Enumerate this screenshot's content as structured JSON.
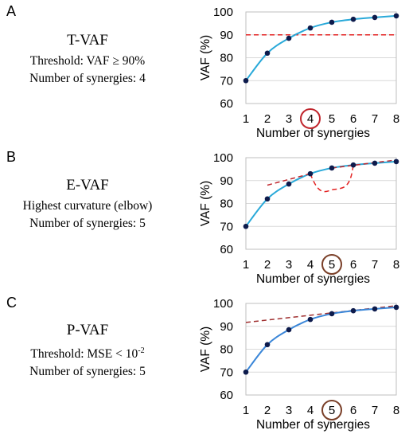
{
  "panels": [
    {
      "letter": "A",
      "method": "T-VAF",
      "criterion": "Threshold: VAF ≥ 90%",
      "result": "Number of synergies: 4"
    },
    {
      "letter": "B",
      "method": "E-VAF",
      "criterion": "Highest curvature (elbow)",
      "result": "Number of synergies: 5"
    },
    {
      "letter": "C",
      "method": "P-VAF",
      "criterion": "Threshold: MSE < 10",
      "criterion_sup": "-2",
      "result": "Number of synergies: 5"
    }
  ],
  "chart_data": [
    {
      "type": "line",
      "xlabel": "Number of synergies",
      "ylabel": "VAF (%)",
      "x": [
        1,
        2,
        3,
        4,
        5,
        6,
        7,
        8
      ],
      "ylim": [
        60,
        100
      ],
      "yticks": [
        60,
        70,
        80,
        90,
        100
      ],
      "grid": true,
      "series": [
        {
          "values": [
            70,
            82,
            88.5,
            93,
            95.5,
            96.8,
            97.6,
            98.3
          ],
          "color": "#29a9d9"
        }
      ],
      "threshold": {
        "value": 90,
        "color": "#e32222",
        "style": "dashed"
      },
      "highlight": {
        "x": 4,
        "color": "#c0262d"
      }
    },
    {
      "type": "line",
      "xlabel": "Number of synergies",
      "ylabel": "VAF (%)",
      "x": [
        1,
        2,
        3,
        4,
        5,
        6,
        7,
        8
      ],
      "ylim": [
        60,
        100
      ],
      "yticks": [
        60,
        70,
        80,
        90,
        100
      ],
      "grid": true,
      "series": [
        {
          "values": [
            70,
            82,
            88.5,
            93,
            95.5,
            96.8,
            97.6,
            98.3
          ],
          "color": "#29a9d9"
        }
      ],
      "elbow_lines": [
        {
          "points": [
            [
              2,
              88
            ],
            [
              4,
              93
            ]
          ],
          "color": "#c0262d",
          "style": "dashed"
        },
        {
          "points": [
            [
              5,
              95.5
            ],
            [
              8,
              99
            ]
          ],
          "color": "#c0262d",
          "style": "dashed"
        }
      ],
      "curvature_arc": {
        "from": [
          4,
          93
        ],
        "to": [
          6,
          96.8
        ],
        "min_y": 86,
        "color": "#e32222",
        "style": "dashed"
      },
      "highlight": {
        "x": 5,
        "color": "#7a3f28"
      }
    },
    {
      "type": "line",
      "xlabel": "Number of synergies",
      "ylabel": "VAF (%)",
      "x": [
        1,
        2,
        3,
        4,
        5,
        6,
        7,
        8
      ],
      "ylim": [
        60,
        100
      ],
      "yticks": [
        60,
        70,
        80,
        90,
        100
      ],
      "grid": true,
      "series": [
        {
          "values": [
            70,
            82,
            88.5,
            93,
            95.5,
            96.8,
            97.6,
            98.3
          ],
          "color": "#3a86d8"
        }
      ],
      "fit_line": {
        "points": [
          [
            1,
            91.7
          ],
          [
            8,
            99
          ]
        ],
        "color": "#a03030",
        "style": "dashed"
      },
      "highlight": {
        "x": 5,
        "color": "#7a3f28"
      }
    }
  ]
}
